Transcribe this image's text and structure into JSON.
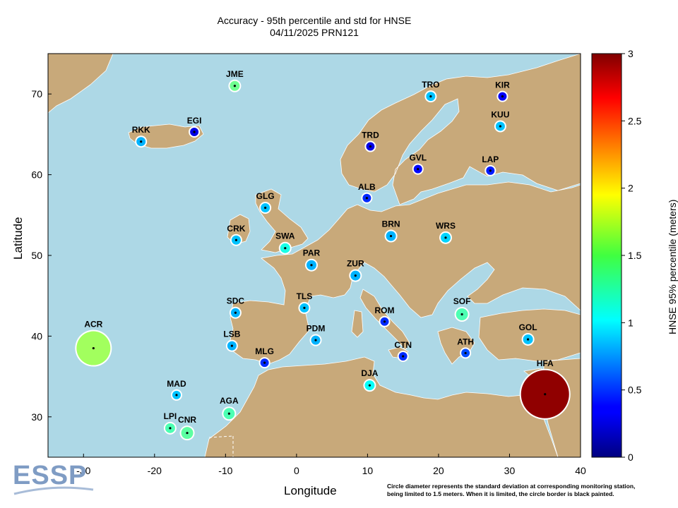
{
  "title_line1": "Accuracy - 95th percentile and std for HNSE",
  "title_line2": "04/11/2025 PRN121",
  "xlabel": "Longitude",
  "ylabel": "Latitude",
  "colorbar_label": "HNSE 95% percentile (meters)",
  "note_line1": "Circle diameter represents the standard deviation at corresponding monitoring station,",
  "note_line2": "being limited to 1.5 meters. When it is limited, the circle border is black painted.",
  "logo_text": "ESSP",
  "colors": {
    "sea": "#add8e6",
    "land": "#c8a97a"
  },
  "chart_data": {
    "type": "scatter",
    "title": "Accuracy - 95th percentile and std for HNSE",
    "subtitle": "04/11/2025 PRN121",
    "xlabel": "Longitude",
    "ylabel": "Latitude",
    "xlim": [
      -35,
      40
    ],
    "ylim": [
      25,
      75
    ],
    "xticks": [
      -30,
      -20,
      -10,
      0,
      10,
      20,
      30,
      40
    ],
    "yticks": [
      30,
      40,
      50,
      60,
      70
    ],
    "colorbar": {
      "label": "HNSE 95% percentile (meters)",
      "range": [
        0,
        3
      ],
      "ticks": [
        0,
        0.5,
        1,
        1.5,
        2,
        2.5,
        3
      ],
      "colormap": "jet"
    },
    "stations": [
      {
        "name": "JME",
        "lon": -8.7,
        "lat": 71.0,
        "value": 1.45,
        "std": 0.06
      },
      {
        "name": "TRO",
        "lon": 18.9,
        "lat": 69.7,
        "value": 0.95,
        "std": 0.05
      },
      {
        "name": "KIR",
        "lon": 29.0,
        "lat": 69.7,
        "value": 0.35,
        "std": 0.03
      },
      {
        "name": "KUU",
        "lon": 28.7,
        "lat": 66.0,
        "value": 0.95,
        "std": 0.05
      },
      {
        "name": "EGI",
        "lon": -14.4,
        "lat": 65.3,
        "value": 0.3,
        "std": 0.02
      },
      {
        "name": "RKK",
        "lon": -21.9,
        "lat": 64.1,
        "value": 0.9,
        "std": 0.05
      },
      {
        "name": "TRD",
        "lon": 10.4,
        "lat": 63.5,
        "value": 0.3,
        "std": 0.01
      },
      {
        "name": "GVL",
        "lon": 17.1,
        "lat": 60.7,
        "value": 0.4,
        "std": 0.03
      },
      {
        "name": "LAP",
        "lon": 27.3,
        "lat": 60.5,
        "value": 0.45,
        "std": 0.04
      },
      {
        "name": "ALB",
        "lon": 9.9,
        "lat": 57.1,
        "value": 0.5,
        "std": 0.03
      },
      {
        "name": "GLG",
        "lon": -4.4,
        "lat": 55.9,
        "value": 0.95,
        "std": 0.05
      },
      {
        "name": "BRN",
        "lon": 13.3,
        "lat": 52.4,
        "value": 0.9,
        "std": 0.06
      },
      {
        "name": "WRS",
        "lon": 21.0,
        "lat": 52.2,
        "value": 1.0,
        "std": 0.06
      },
      {
        "name": "CRK",
        "lon": -8.5,
        "lat": 51.9,
        "value": 0.95,
        "std": 0.05
      },
      {
        "name": "SWA",
        "lon": -1.6,
        "lat": 50.9,
        "value": 1.2,
        "std": 0.06
      },
      {
        "name": "PAR",
        "lon": 2.1,
        "lat": 48.8,
        "value": 0.9,
        "std": 0.06
      },
      {
        "name": "ZUR",
        "lon": 8.3,
        "lat": 47.5,
        "value": 0.9,
        "std": 0.06
      },
      {
        "name": "TLS",
        "lon": 1.1,
        "lat": 43.5,
        "value": 0.95,
        "std": 0.05
      },
      {
        "name": "SDC",
        "lon": -8.6,
        "lat": 42.9,
        "value": 0.9,
        "std": 0.05
      },
      {
        "name": "SOF",
        "lon": 23.3,
        "lat": 42.7,
        "value": 1.35,
        "std": 0.09
      },
      {
        "name": "ROM",
        "lon": 12.4,
        "lat": 41.8,
        "value": 0.5,
        "std": 0.04
      },
      {
        "name": "GOL",
        "lon": 32.6,
        "lat": 39.6,
        "value": 0.95,
        "std": 0.06
      },
      {
        "name": "PDM",
        "lon": 2.7,
        "lat": 39.5,
        "value": 0.9,
        "std": 0.05
      },
      {
        "name": "LSB",
        "lon": -9.1,
        "lat": 38.8,
        "value": 0.9,
        "std": 0.05
      },
      {
        "name": "ACR",
        "lon": -28.6,
        "lat": 38.5,
        "value": 1.6,
        "std": 0.4
      },
      {
        "name": "ATH",
        "lon": 23.8,
        "lat": 37.9,
        "value": 0.6,
        "std": 0.04
      },
      {
        "name": "MLG",
        "lon": -4.5,
        "lat": 36.7,
        "value": 0.5,
        "std": 0.03
      },
      {
        "name": "CTN",
        "lon": 15.0,
        "lat": 37.5,
        "value": 0.5,
        "std": 0.03
      },
      {
        "name": "DJA",
        "lon": 10.3,
        "lat": 33.9,
        "value": 1.15,
        "std": 0.06
      },
      {
        "name": "HFA",
        "lon": 35.0,
        "lat": 32.8,
        "value": 2.95,
        "std": 0.6
      },
      {
        "name": "MAD",
        "lon": -16.9,
        "lat": 32.7,
        "value": 0.95,
        "std": 0.04
      },
      {
        "name": "AGA",
        "lon": -9.5,
        "lat": 30.4,
        "value": 1.35,
        "std": 0.08
      },
      {
        "name": "LPI",
        "lon": -17.8,
        "lat": 28.6,
        "value": 1.35,
        "std": 0.06
      },
      {
        "name": "CNR",
        "lon": -15.4,
        "lat": 28.0,
        "value": 1.4,
        "std": 0.09
      }
    ]
  }
}
